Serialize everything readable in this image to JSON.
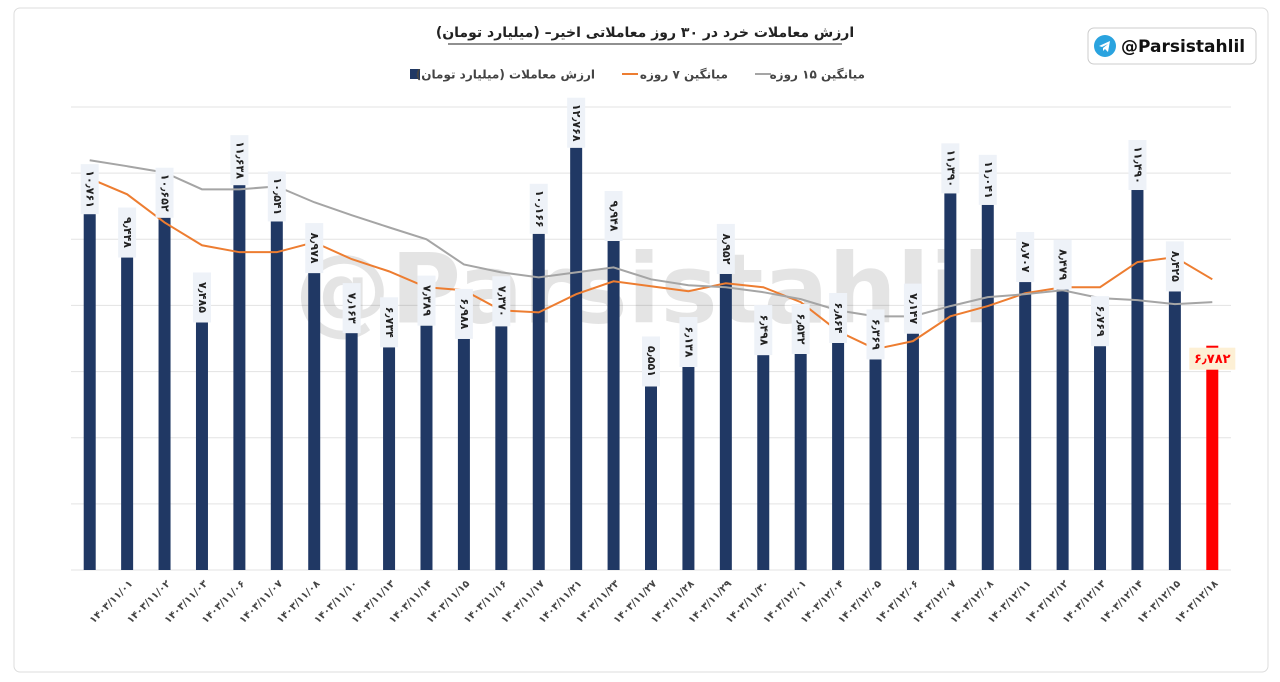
{
  "chart_data": {
    "type": "bar",
    "title": "ارزش معاملات خرد در ۳۰ روز معاملاتی اخیر– (میلیارد تومان)",
    "badge": "@Parsistahlil",
    "watermark": "@Parsistahlil",
    "categories": [
      null,
      "۱۴۰۳/۱۱/۰۱",
      "۱۴۰۳/۱۱/۰۲",
      "۱۴۰۳/۱۱/۰۳",
      "۱۴۰۳/۱۱/۰۶",
      "۱۴۰۳/۱۱/۰۷",
      "۱۴۰۳/۱۱/۰۸",
      "۱۴۰۳/۱۱/۱۰",
      "۱۴۰۳/۱۱/۱۳",
      "۱۴۰۳/۱۱/۱۴",
      "۱۴۰۳/۱۱/۱۵",
      "۱۴۰۳/۱۱/۱۶",
      "۱۴۰۳/۱۱/۱۷",
      "۱۴۰۳/۱۱/۲۱",
      "۱۴۰۳/۱۱/۲۳",
      "۱۴۰۳/۱۱/۲۷",
      "۱۴۰۳/۱۱/۲۸",
      "۱۴۰۳/۱۱/۲۹",
      "۱۴۰۳/۱۱/۳۰",
      "۱۴۰۳/۱۲/۰۱",
      "۱۴۰۳/۱۲/۰۴",
      "۱۴۰۳/۱۲/۰۵",
      "۱۴۰۳/۱۲/۰۶",
      "۱۴۰۳/۱۲/۰۷",
      "۱۴۰۳/۱۲/۰۸",
      "۱۴۰۳/۱۲/۱۱",
      "۱۴۰۳/۱۲/۱۲",
      "۱۴۰۳/۱۲/۱۳",
      "۱۴۰۳/۱۲/۱۴",
      "۱۴۰۳/۱۲/۱۵",
      "۱۴۰۳/۱۲/۱۸"
    ],
    "series": [
      {
        "name": "ارزش معاملات (میلیارد تومان)",
        "color": "#203864",
        "kind": "bar",
        "values": [
          10.761,
          9.448,
          10.652,
          7.485,
          11.638,
          10.541,
          8.978,
          7.163,
          6.734,
          7.389,
          6.988,
          7.37,
          10.166,
          12.768,
          9.948,
          5.551,
          6.138,
          8.952,
          6.498,
          6.532,
          6.864,
          6.369,
          7.147,
          11.39,
          11.041,
          8.707,
          8.479,
          6.769,
          11.49,
          8.425,
          6.782
        ],
        "value_labels": [
          "۱۰٫۷۶۱",
          "۹٫۴۴۸",
          "۱۰٫۶۵۲",
          "۷٫۴۸۵",
          "۱۱٫۶۳۸",
          "۱۰٫۵۴۱",
          "۸٫۹۷۸",
          "۷٫۱۶۳",
          "۶٫۷۳۴",
          "۷٫۳۸۹",
          "۶٫۹۸۸",
          "۷٫۳۷۰",
          "۱۰٫۱۶۶",
          "۱۲٫۷۶۸",
          "۹٫۹۴۸",
          "۵٫۵۵۱",
          "۶٫۱۳۸",
          "۸٫۹۵۲",
          "۶٫۴۹۸",
          "۶٫۵۳۲",
          "۶٫۸۶۴",
          "۶٫۳۶۹",
          "۷٫۱۴۷",
          "۱۱٫۳۹۰",
          "۱۱٫۰۴۱",
          "۸٫۷۰۷",
          "۸٫۴۷۹",
          "۶٫۷۶۹",
          "۱۱٫۴۹۰",
          "۸٫۴۲۵",
          "۶٫۷۸۲"
        ],
        "colors": [
          "#203864",
          "#203864",
          "#203864",
          "#203864",
          "#203864",
          "#203864",
          "#203864",
          "#203864",
          "#203864",
          "#203864",
          "#203864",
          "#203864",
          "#203864",
          "#203864",
          "#203864",
          "#203864",
          "#203864",
          "#203864",
          "#203864",
          "#203864",
          "#203864",
          "#203864",
          "#203864",
          "#203864",
          "#203864",
          "#203864",
          "#203864",
          "#203864",
          "#203864",
          "#203864",
          "#ff0000"
        ]
      },
      {
        "name": "میانگین ۷ روزه",
        "color": "#ed7d31",
        "kind": "line",
        "values": [
          11.84,
          11.36,
          10.51,
          9.82,
          9.61,
          9.61,
          9.91,
          9.4,
          9.03,
          8.55,
          8.46,
          7.85,
          7.79,
          8.34,
          8.73,
          8.58,
          8.43,
          8.67,
          8.55,
          8.1,
          7.22,
          6.68,
          6.92,
          7.67,
          7.98,
          8.37,
          8.55,
          8.55,
          9.31,
          9.46,
          8.79
        ]
      },
      {
        "name": "میانگین ۱۵ روزه",
        "color": "#a5a5a5",
        "kind": "line",
        "values": [
          12.39,
          12.21,
          12.02,
          11.51,
          11.51,
          11.6,
          11.12,
          10.73,
          10.36,
          10.0,
          9.24,
          9.0,
          8.85,
          9.0,
          9.15,
          8.79,
          8.61,
          8.55,
          8.4,
          8.19,
          7.85,
          7.67,
          7.67,
          7.98,
          8.25,
          8.34,
          8.46,
          8.22,
          8.16,
          8.04,
          8.1
        ]
      }
    ],
    "ylim": [
      0,
      14
    ],
    "yticks": [
      0,
      2,
      4,
      6,
      8,
      10,
      12,
      14
    ],
    "grid": true
  }
}
